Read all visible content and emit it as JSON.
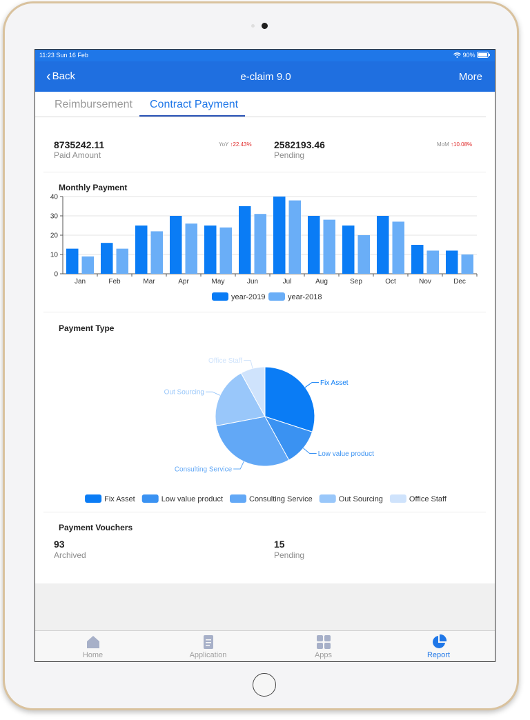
{
  "status": {
    "time": "11:23  Sun 16 Feb",
    "battery": "90%"
  },
  "nav": {
    "back_label": "Back",
    "title": "e-claim 9.0",
    "more_label": "More"
  },
  "tabs": [
    {
      "label": "Reimbursement",
      "active": false
    },
    {
      "label": "Contract Payment",
      "active": true
    }
  ],
  "summary": {
    "paid": {
      "value": "8735242.11",
      "label": "Paid Amount",
      "delta_prefix": "YoY",
      "delta": "22.43%"
    },
    "pending": {
      "value": "2582193.46",
      "label": "Pending",
      "delta_prefix": "MoM",
      "delta": "10.08%"
    }
  },
  "monthly": {
    "title": "Monthly Payment",
    "chart_data": {
      "type": "bar",
      "categories": [
        "Jan",
        "Feb",
        "Mar",
        "Apr",
        "May",
        "Jun",
        "Jul",
        "Aug",
        "Sep",
        "Oct",
        "Nov",
        "Dec"
      ],
      "series": [
        {
          "name": "year-2019",
          "values": [
            13,
            16,
            25,
            30,
            25,
            35,
            40,
            30,
            25,
            30,
            15,
            12
          ],
          "color": "#0a7cf5"
        },
        {
          "name": "year-2018",
          "values": [
            9,
            13,
            22,
            26,
            24,
            31,
            38,
            28,
            20,
            27,
            12,
            10
          ],
          "color": "#6aaef7"
        }
      ],
      "ylim": [
        0,
        40
      ],
      "yticks": [
        0,
        10,
        20,
        30,
        40
      ],
      "grid": true,
      "legend": "bottom"
    }
  },
  "payment_type": {
    "title": "Payment Type",
    "chart_data": {
      "type": "pie",
      "slices": [
        {
          "label": "Fix Asset",
          "value": 30,
          "color": "#0a7cf5"
        },
        {
          "label": "Low value product",
          "value": 12,
          "color": "#3a92f2"
        },
        {
          "label": "Consulting Service",
          "value": 30,
          "color": "#62a8f6"
        },
        {
          "label": "Out Sourcing",
          "value": 20,
          "color": "#99c7fa"
        },
        {
          "label": "Office Staff",
          "value": 8,
          "color": "#cfe3fc"
        }
      ],
      "legend": "bottom"
    }
  },
  "vouchers": {
    "title": "Payment Vouchers",
    "archived": {
      "value": "93",
      "label": "Archived"
    },
    "pending": {
      "value": "15",
      "label": "Pending"
    }
  },
  "tabbar": [
    {
      "label": "Home",
      "icon": "home-icon",
      "active": false
    },
    {
      "label": "Application",
      "icon": "document-icon",
      "active": false
    },
    {
      "label": "Apps",
      "icon": "grid-icon",
      "active": false
    },
    {
      "label": "Report",
      "icon": "pie-chart-icon",
      "active": true
    }
  ]
}
